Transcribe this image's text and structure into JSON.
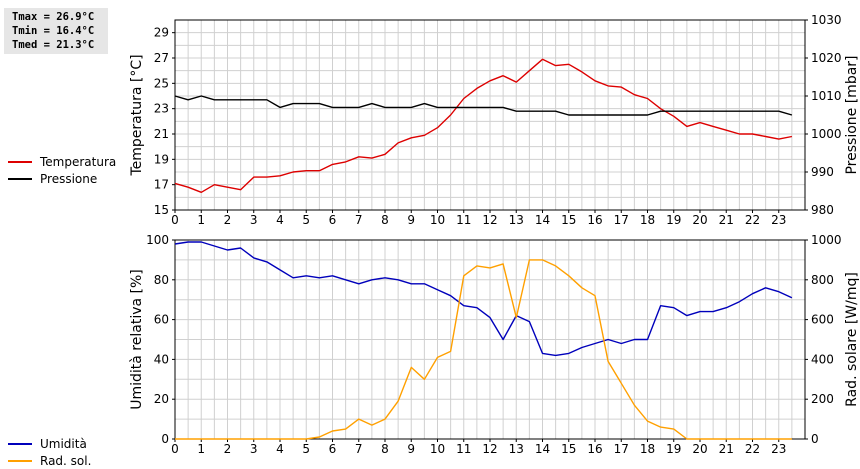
{
  "stats": {
    "lines": [
      "Tmax = 26.9°C",
      "Tmin = 16.4°C",
      "Tmed = 21.3°C"
    ]
  },
  "colors": {
    "temp": "#dd0000",
    "press": "#000000",
    "hum": "#0000bb",
    "rad": "#ffa000",
    "grid": "#d0d0d0"
  },
  "legend_top": [
    {
      "label": "Temperatura",
      "color": "#dd0000"
    },
    {
      "label": "Pressione",
      "color": "#000000"
    }
  ],
  "legend_bottom": [
    {
      "label": "Umidità",
      "color": "#0000bb"
    },
    {
      "label": "Rad. sol.",
      "color": "#ffa000"
    }
  ],
  "chart_data": [
    {
      "type": "line",
      "ylabel_left": "Temperatura [°C]",
      "ylabel_right": "Pressione [mbar]",
      "x_ticks": [
        "0",
        "1",
        "2",
        "3",
        "4",
        "5",
        "6",
        "7",
        "8",
        "9",
        "10",
        "11",
        "12",
        "13",
        "14",
        "15",
        "16",
        "17",
        "18",
        "19",
        "20",
        "21",
        "22",
        "23"
      ],
      "xlim": [
        0,
        24
      ],
      "ylim_left": [
        15,
        30
      ],
      "ylim_right": [
        980,
        1030
      ],
      "y_ticks_left": [
        "15",
        "17",
        "19",
        "21",
        "23",
        "25",
        "27",
        "29"
      ],
      "y_ticks_right": [
        "980",
        "990",
        "1000",
        "1010",
        "1020",
        "1030"
      ],
      "grid": true,
      "series": [
        {
          "name": "Temperatura",
          "axis": "left",
          "x": [
            0,
            0.5,
            1,
            1.5,
            2,
            2.5,
            3,
            3.5,
            4,
            4.5,
            5,
            5.5,
            6,
            6.5,
            7,
            7.5,
            8,
            8.5,
            9,
            9.5,
            10,
            10.5,
            11,
            11.5,
            12,
            12.5,
            13,
            13.5,
            14,
            14.5,
            15,
            15.5,
            16,
            16.5,
            17,
            17.5,
            18,
            18.5,
            19,
            19.5,
            20,
            20.5,
            21,
            21.5,
            22,
            22.5,
            23,
            23.5
          ],
          "values": [
            17.1,
            16.8,
            16.4,
            17.0,
            16.8,
            16.6,
            17.6,
            17.6,
            17.7,
            18.0,
            18.1,
            18.1,
            18.6,
            18.8,
            19.2,
            19.1,
            19.4,
            20.3,
            20.7,
            20.9,
            21.5,
            22.5,
            23.8,
            24.6,
            25.2,
            25.6,
            25.1,
            26.0,
            26.9,
            26.4,
            26.5,
            25.9,
            25.2,
            24.8,
            24.7,
            24.1,
            23.8,
            23.0,
            22.4,
            21.6,
            21.9,
            21.6,
            21.3,
            21.0,
            21.0,
            20.8,
            20.6,
            20.8
          ]
        },
        {
          "name": "Pressione",
          "axis": "right",
          "x": [
            0,
            0.5,
            1,
            1.5,
            2,
            2.5,
            3,
            3.5,
            4,
            4.5,
            5,
            5.5,
            6,
            6.5,
            7,
            7.5,
            8,
            8.5,
            9,
            9.5,
            10,
            10.5,
            11,
            11.5,
            12,
            12.5,
            13,
            13.5,
            14,
            14.5,
            15,
            15.5,
            16,
            16.5,
            17,
            17.5,
            18,
            18.5,
            19,
            19.5,
            20,
            20.5,
            21,
            21.5,
            22,
            22.5,
            23,
            23.5
          ],
          "values": [
            1010,
            1009,
            1010,
            1009,
            1009,
            1009,
            1009,
            1009,
            1007,
            1008,
            1008,
            1008,
            1007,
            1007,
            1007,
            1008,
            1007,
            1007,
            1007,
            1008,
            1007,
            1007,
            1007,
            1007,
            1007,
            1007,
            1006,
            1006,
            1006,
            1006,
            1005,
            1005,
            1005,
            1005,
            1005,
            1005,
            1005,
            1006,
            1006,
            1006,
            1006,
            1006,
            1006,
            1006,
            1006,
            1006,
            1006,
            1005
          ]
        }
      ]
    },
    {
      "type": "line",
      "ylabel_left": "Umidità relativa [%]",
      "ylabel_right": "Rad. solare [W/mq]",
      "x_ticks": [
        "0",
        "1",
        "2",
        "3",
        "4",
        "5",
        "6",
        "7",
        "8",
        "9",
        "10",
        "11",
        "12",
        "13",
        "14",
        "15",
        "16",
        "17",
        "18",
        "19",
        "20",
        "21",
        "22",
        "23"
      ],
      "xlim": [
        0,
        24
      ],
      "ylim_left": [
        0,
        100
      ],
      "ylim_right": [
        0,
        1000
      ],
      "y_ticks_left": [
        "0",
        "20",
        "40",
        "60",
        "80",
        "100"
      ],
      "y_ticks_right": [
        "0",
        "200",
        "400",
        "600",
        "800",
        "1000"
      ],
      "grid": true,
      "series": [
        {
          "name": "Umidità",
          "axis": "left",
          "x": [
            0,
            0.5,
            1,
            1.5,
            2,
            2.5,
            3,
            3.5,
            4,
            4.5,
            5,
            5.5,
            6,
            6.5,
            7,
            7.5,
            8,
            8.5,
            9,
            9.5,
            10,
            10.5,
            11,
            11.5,
            12,
            12.5,
            13,
            13.5,
            14,
            14.5,
            15,
            15.5,
            16,
            16.5,
            17,
            17.5,
            18,
            18.5,
            19,
            19.5,
            20,
            20.5,
            21,
            21.5,
            22,
            22.5,
            23,
            23.5
          ],
          "values": [
            98,
            99,
            99,
            97,
            95,
            96,
            91,
            89,
            85,
            81,
            82,
            81,
            82,
            80,
            78,
            80,
            81,
            80,
            78,
            78,
            75,
            72,
            67,
            66,
            61,
            50,
            62,
            59,
            43,
            42,
            43,
            46,
            48,
            50,
            48,
            50,
            50,
            67,
            66,
            62,
            64,
            64,
            66,
            69,
            73,
            76,
            74,
            71
          ]
        },
        {
          "name": "Rad. sol.",
          "axis": "right",
          "x": [
            0,
            0.5,
            1,
            1.5,
            2,
            2.5,
            3,
            3.5,
            4,
            4.5,
            5,
            5.5,
            6,
            6.5,
            7,
            7.5,
            8,
            8.5,
            9,
            9.5,
            10,
            10.5,
            11,
            11.5,
            12,
            12.5,
            13,
            13.5,
            14,
            14.5,
            15,
            15.5,
            16,
            16.5,
            17,
            17.5,
            18,
            18.5,
            19,
            19.5,
            20,
            20.5,
            21,
            21.5,
            22,
            22.5,
            23,
            23.5
          ],
          "values": [
            0,
            0,
            0,
            0,
            0,
            0,
            0,
            0,
            0,
            0,
            0,
            10,
            40,
            50,
            100,
            70,
            100,
            190,
            360,
            300,
            410,
            440,
            820,
            870,
            860,
            880,
            610,
            900,
            900,
            870,
            820,
            760,
            720,
            390,
            280,
            170,
            90,
            60,
            50,
            0,
            0,
            0,
            0,
            0,
            0,
            0,
            0,
            0
          ]
        }
      ]
    }
  ]
}
